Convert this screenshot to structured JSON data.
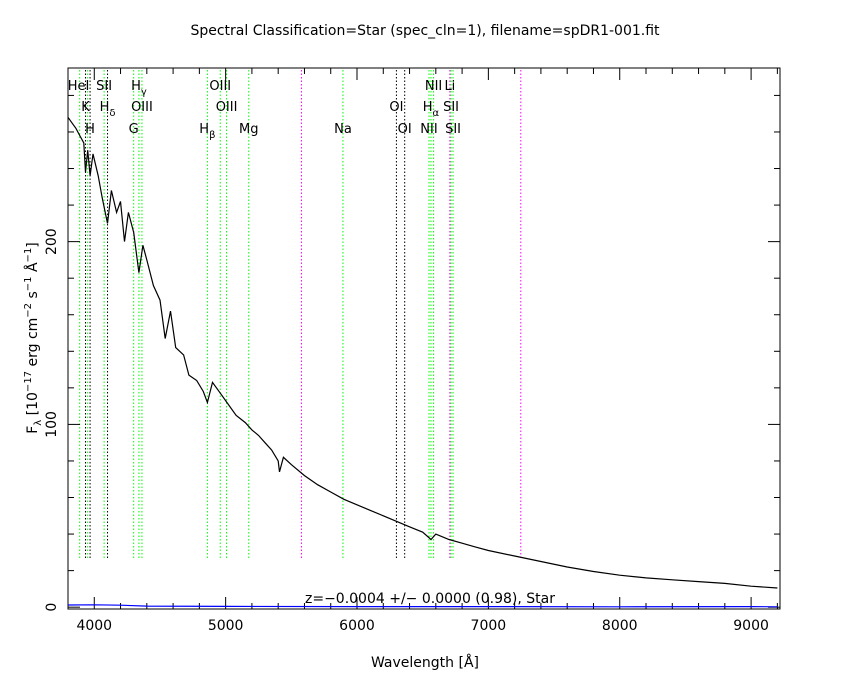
{
  "chart_data": {
    "type": "line",
    "title": "Spectral Classification=Star (spec_cln=1), filename=spDR1-001.fit",
    "xlabel": "Wavelength [Å]",
    "ylabel_parts": {
      "f": "F",
      "lambda": "λ",
      "bracket_open": " [10",
      "exp1": "−17",
      "erg": " erg cm",
      "exp2": "−2",
      "s": " s",
      "exp3": "−1",
      "ang": " Å",
      "exp4": "−1",
      "bracket_close": "]"
    },
    "xlim": [
      3800,
      9220
    ],
    "ylim": [
      -1,
      295
    ],
    "x_ticks": [
      4000,
      5000,
      6000,
      7000,
      8000,
      9000
    ],
    "y_ticks": [
      0,
      100,
      200
    ],
    "annotation": "z=−0.0004 +/− 0.0000 (0.98), Star",
    "series": [
      {
        "role": "flux",
        "color": "#000000",
        "x": [
          3800,
          3830,
          3860,
          3890,
          3920,
          3933,
          3950,
          3968,
          3990,
          4030,
          4060,
          4101,
          4130,
          4170,
          4200,
          4230,
          4260,
          4300,
          4340,
          4370,
          4400,
          4450,
          4500,
          4540,
          4580,
          4620,
          4680,
          4720,
          4780,
          4830,
          4861,
          4900,
          4960,
          5000,
          5080,
          5150,
          5200,
          5250,
          5300,
          5350,
          5400,
          5410,
          5440,
          5500,
          5600,
          5700,
          5800,
          5900,
          6000,
          6100,
          6200,
          6300,
          6400,
          6500,
          6563,
          6600,
          6700,
          6800,
          6900,
          7000,
          7200,
          7400,
          7600,
          7800,
          8000,
          8200,
          8400,
          8600,
          8800,
          9000,
          9200
        ],
        "y": [
          268,
          265,
          262,
          258,
          254,
          238,
          250,
          236,
          248,
          236,
          224,
          210,
          228,
          216,
          222,
          200,
          216,
          205,
          183,
          198,
          190,
          176,
          168,
          147,
          162,
          142,
          138,
          127,
          124,
          118,
          112,
          123,
          117,
          113,
          105,
          101,
          97,
          94,
          90,
          86,
          80,
          74,
          82,
          78,
          72,
          67,
          63,
          59,
          56,
          53,
          50,
          47,
          44,
          41,
          37,
          40,
          37,
          35,
          33,
          31,
          28,
          25,
          22,
          19.5,
          17.5,
          16,
          15,
          14,
          13,
          11.5,
          10.5
        ]
      },
      {
        "role": "error",
        "color": "#0000ff",
        "x": [
          3800,
          4000,
          4200,
          4400,
          5000,
          6000,
          7000,
          8000,
          9000,
          9200
        ],
        "y": [
          1.2,
          1.3,
          1.1,
          0.6,
          0.4,
          0.3,
          0.3,
          0.2,
          0.3,
          0.2
        ]
      }
    ],
    "line_groups": [
      {
        "color": "#000000",
        "wavelengths": [
          3933,
          3968,
          4101,
          6300,
          6363
        ]
      },
      {
        "color": "#00ff00",
        "wavelengths": [
          3889,
          3950,
          4075,
          4300,
          4340,
          4363,
          4861,
          4959,
          5007,
          5176,
          5893,
          6548,
          6563,
          6583,
          6716,
          6731
        ]
      },
      {
        "color": "#ff00ff",
        "wavelengths": [
          5577,
          6707,
          7247
        ]
      }
    ],
    "line_labels": [
      {
        "text": "HeI",
        "w": 3880,
        "row": 1
      },
      {
        "text": "SII",
        "w": 4075,
        "row": 1
      },
      {
        "text": "H",
        "sub": "γ",
        "w": 4340,
        "row": 1
      },
      {
        "text": "OIII",
        "w": 4959,
        "row": 1
      },
      {
        "text": "NII",
        "w": 6583,
        "row": 1
      },
      {
        "text": "Li",
        "w": 6707,
        "row": 1
      },
      {
        "text": "K",
        "w": 3933,
        "row": 2
      },
      {
        "text": "H",
        "sub": "δ",
        "w": 4101,
        "row": 2
      },
      {
        "text": "OIII",
        "w": 4363,
        "row": 2
      },
      {
        "text": "OIII",
        "w": 5007,
        "row": 2
      },
      {
        "text": "OI",
        "w": 6300,
        "row": 2
      },
      {
        "text": "H",
        "sub": "α",
        "w": 6563,
        "row": 2
      },
      {
        "text": "SII",
        "w": 6716,
        "row": 2
      },
      {
        "text": "H",
        "w": 3968,
        "row": 3
      },
      {
        "text": "G",
        "w": 4300,
        "row": 3
      },
      {
        "text": "H",
        "sub": "β",
        "w": 4861,
        "row": 3
      },
      {
        "text": "Mg",
        "w": 5176,
        "row": 3
      },
      {
        "text": "Na",
        "w": 5893,
        "row": 3
      },
      {
        "text": "OI",
        "w": 6363,
        "row": 3
      },
      {
        "text": "NII",
        "w": 6548,
        "row": 3
      },
      {
        "text": "SII",
        "w": 6731,
        "row": 3
      }
    ]
  }
}
